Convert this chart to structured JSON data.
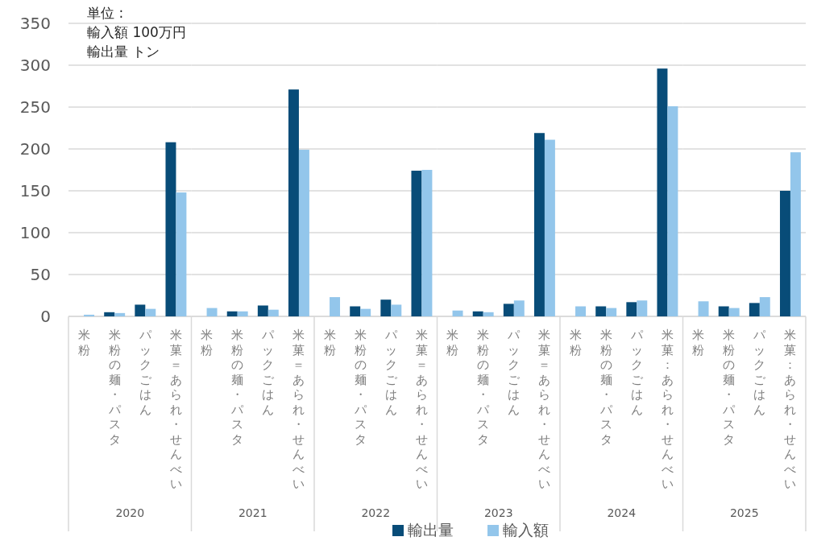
{
  "chart_data": [
    {
      "type": "bar",
      "xlabel": "2020",
      "categories": [
        "米粉",
        "米粉の麺・パスタ",
        "パックごはん",
        "米菓＝あられ・せんべい"
      ],
      "series": [
        {
          "name": "輸出量",
          "color": "#084c78",
          "values": [
            null,
            5,
            14,
            208
          ]
        },
        {
          "name": "輸入額",
          "color": "#93c6eb",
          "values": [
            2,
            4,
            9,
            148
          ]
        }
      ],
      "ylim": [
        0,
        350
      ],
      "yticks": [
        0,
        50,
        100,
        150,
        200,
        250,
        300,
        350
      ],
      "grid": "y",
      "legend": "bottom",
      "annotations": [
        "単位 :",
        "輸入額 100万円",
        "輸出量 トン"
      ]
    },
    {
      "type": "bar",
      "xlabel": "2021",
      "categories": [
        "米粉",
        "米粉の麺・パスタ",
        "パックごはん",
        "米菓＝あられ・せんべい"
      ],
      "series": [
        {
          "color": "#084c78",
          "values": [
            null,
            6,
            13,
            271
          ]
        },
        {
          "color": "#93c6eb",
          "values": [
            10,
            6,
            8,
            199
          ]
        }
      ],
      "ylim": [
        0,
        350
      ],
      "yticks": [
        0,
        50,
        100,
        150,
        200,
        250,
        300,
        350
      ],
      "grid": "y",
      "tick_labels": "x"
    },
    {
      "type": "bar",
      "xlabel": "2022",
      "categories": [
        "米粉",
        "米粉の麺・パスタ",
        "パックごはん",
        "米菓＝あられ・せんべい"
      ],
      "series": [
        {
          "color": "#084c78",
          "values": [
            null,
            12,
            20,
            174
          ]
        },
        {
          "color": "#93c6eb",
          "values": [
            23,
            9,
            14,
            175
          ]
        }
      ],
      "ylim": [
        0,
        350
      ],
      "yticks": [
        0,
        50,
        100,
        150,
        200,
        250,
        300,
        350
      ],
      "grid": "y",
      "tick_labels": "x"
    },
    {
      "type": "bar",
      "xlabel": "2023",
      "categories": [
        "米粉",
        "米粉の麺・パスタ",
        "パックごはん",
        "米菓＝あられ・せんべい"
      ],
      "series": [
        {
          "color": "#084c78",
          "values": [
            null,
            6,
            15,
            219
          ]
        },
        {
          "color": "#93c6eb",
          "values": [
            7,
            5,
            19,
            211
          ]
        }
      ],
      "ylim": [
        0,
        350
      ],
      "yticks": [
        0,
        50,
        100,
        150,
        200,
        250,
        300,
        350
      ],
      "grid": "y",
      "tick_labels": "x"
    },
    {
      "type": "bar",
      "xlabel": "2024",
      "categories": [
        "米粉",
        "米粉の麺・パスタ",
        "パックごはん",
        "米菓：あられ・せんべい"
      ],
      "series": [
        {
          "color": "#084c78",
          "values": [
            null,
            12,
            17,
            296
          ]
        },
        {
          "color": "#93c6eb",
          "values": [
            12,
            10,
            19,
            251
          ]
        }
      ],
      "ylim": [
        0,
        350
      ],
      "yticks": [
        0,
        50,
        100,
        150,
        200,
        250,
        300,
        350
      ],
      "grid": "y",
      "tick_labels": "x"
    },
    {
      "type": "bar",
      "xlabel": "2025",
      "categories": [
        "米粉",
        "米粉の麺・パスタ",
        "パックごはん",
        "米菓：あられ・せんべい"
      ],
      "series": [
        {
          "color": "#084c78",
          "values": [
            null,
            12,
            16,
            150
          ]
        },
        {
          "color": "#93c6eb",
          "values": [
            18,
            10,
            23,
            196
          ]
        }
      ],
      "ylim": [
        0,
        350
      ],
      "yticks": [
        0,
        50,
        100,
        150,
        200,
        250,
        300,
        350
      ],
      "grid": "y",
      "tick_labels": "x"
    }
  ]
}
